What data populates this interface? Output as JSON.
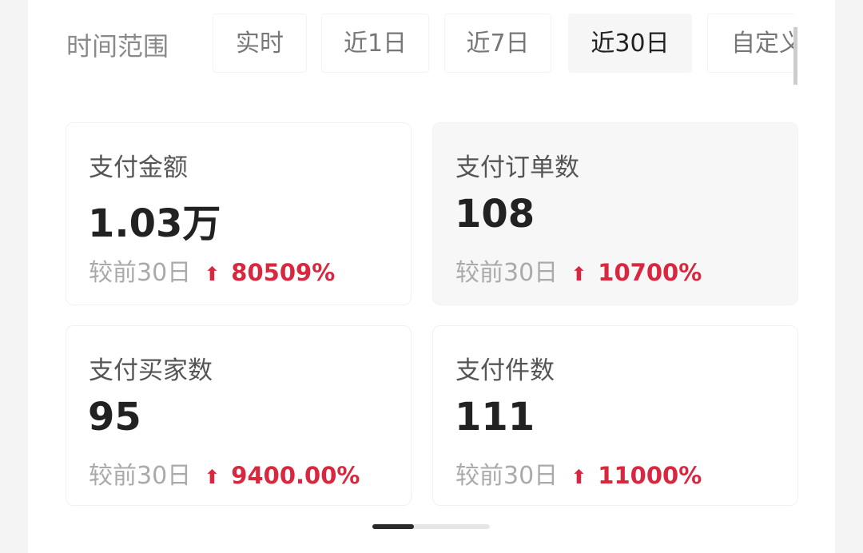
{
  "time_range": {
    "label": "时间范围",
    "tabs": [
      {
        "label": "实时"
      },
      {
        "label": "近1日"
      },
      {
        "label": "近7日"
      },
      {
        "label": "近30日",
        "selected": true
      },
      {
        "label": "自定义"
      }
    ]
  },
  "metrics": [
    {
      "title": "支付金额",
      "value": "1.03万",
      "compare_label": "较前30日",
      "trend": "up",
      "change": "80509%"
    },
    {
      "title": "支付订单数",
      "value": "108",
      "compare_label": "较前30日",
      "trend": "up",
      "change": "10700%"
    },
    {
      "title": "支付买家数",
      "value": "95",
      "compare_label": "较前30日",
      "trend": "up",
      "change": "9400.00%"
    },
    {
      "title": "支付件数",
      "value": "111",
      "compare_label": "较前30日",
      "trend": "up",
      "change": "11000%"
    }
  ],
  "pager": {
    "current_page": 1,
    "total_pages": 2
  },
  "colors": {
    "accent_up": "#d8283f",
    "text": "#222222",
    "muted": "#aaaaaa"
  }
}
